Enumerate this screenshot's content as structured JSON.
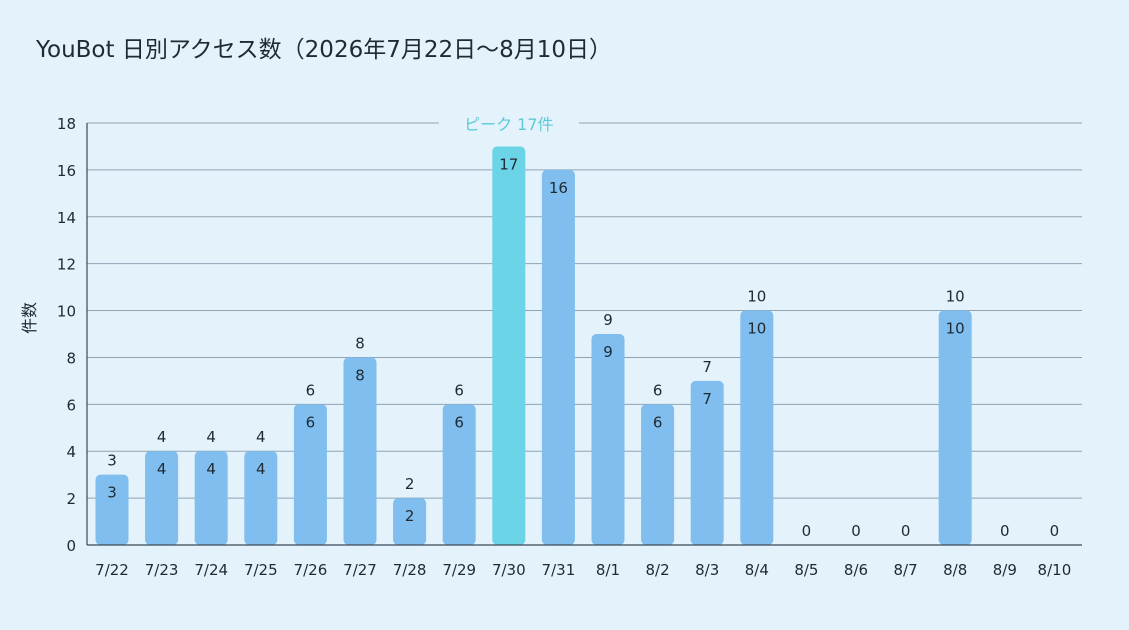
{
  "chart_data": {
    "type": "bar",
    "title": "YouBot 日別アクセス数（2026年7月22日〜8月10日）",
    "xlabel": "",
    "ylabel": "件数",
    "categories": [
      "7/22",
      "7/23",
      "7/24",
      "7/25",
      "7/26",
      "7/27",
      "7/28",
      "7/29",
      "7/30",
      "7/31",
      "8/1",
      "8/2",
      "8/3",
      "8/4",
      "8/5",
      "8/6",
      "8/7",
      "8/8",
      "8/9",
      "8/10"
    ],
    "values": [
      3,
      4,
      4,
      4,
      6,
      8,
      2,
      6,
      17,
      16,
      9,
      6,
      7,
      10,
      0,
      0,
      0,
      10,
      0,
      0
    ],
    "inner_labels": [
      3,
      4,
      4,
      4,
      6,
      8,
      2,
      6,
      17,
      16,
      9,
      6,
      7,
      10,
      null,
      null,
      null,
      10,
      null,
      null
    ],
    "outer_labels": [
      3,
      4,
      4,
      4,
      6,
      8,
      2,
      6,
      null,
      null,
      9,
      6,
      7,
      10,
      0,
      0,
      0,
      10,
      0,
      0
    ],
    "ylim": [
      0,
      18
    ],
    "yticks": [
      0,
      2,
      4,
      6,
      8,
      10,
      12,
      14,
      16,
      18
    ],
    "grid": true,
    "highlight": {
      "category": "7/30",
      "label": "ピーク 17件"
    },
    "colors": {
      "bar": "#7fbeee",
      "highlight_bar": "#6bd4e6",
      "highlight_text": "#5ccad6",
      "grid": "#8fa3b3",
      "axis": "#3b4a57",
      "text": "#1f2a33",
      "background": "#e4f2fb"
    }
  }
}
